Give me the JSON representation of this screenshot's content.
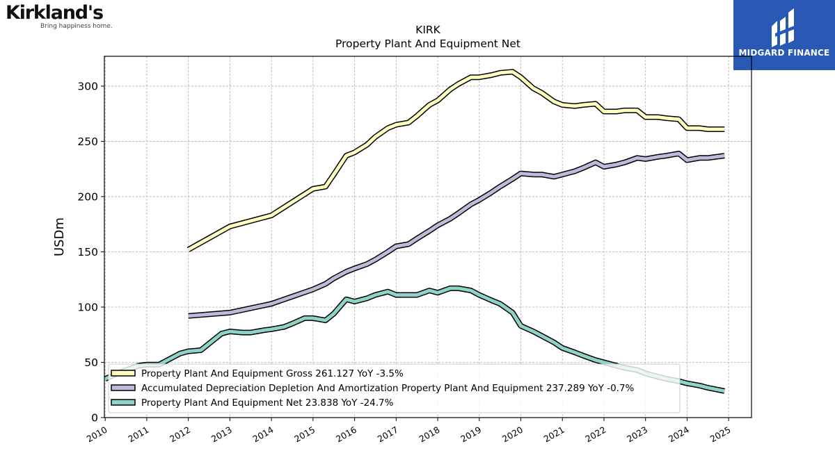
{
  "logos": {
    "company": {
      "name": "Kirkland's",
      "tagline": "Bring happiness home."
    },
    "publisher": {
      "name": "MIDGARD FINANCE"
    }
  },
  "colors": {
    "gross": "#ffffbf",
    "depreciation": "#bebada",
    "net": "#8dd3c7",
    "grid": "#b0b0b0",
    "publisher_bg": "#2a58b5"
  },
  "chart_data": {
    "type": "line",
    "title": "KIRK",
    "subtitle": "Property Plant And Equipment Net",
    "ylabel": "USDm",
    "xlabel": "",
    "xlim": [
      2009.98,
      2025.55
    ],
    "ylim": [
      0,
      327
    ],
    "yticks": [
      0,
      50,
      100,
      150,
      200,
      250,
      300
    ],
    "xticks": [
      "2010",
      "2011",
      "2012",
      "2013",
      "2014",
      "2015",
      "2016",
      "2017",
      "2018",
      "2019",
      "2020",
      "2021",
      "2022",
      "2023",
      "2024",
      "2025"
    ],
    "grid": true,
    "legend_position": "lower-left",
    "series": [
      {
        "key": "gross",
        "name": "Property Plant And Equipment Gross",
        "legend_label": "Property Plant And Equipment Gross  261.127 YoY -3.5%",
        "x": [
          2012.0,
          2013.0,
          2014.0,
          2015.0,
          2015.3,
          2015.5,
          2015.8,
          2016.0,
          2016.3,
          2016.5,
          2016.8,
          2017.0,
          2017.3,
          2017.5,
          2017.8,
          2018.0,
          2018.3,
          2018.5,
          2018.8,
          2019.0,
          2019.3,
          2019.5,
          2019.8,
          2020.0,
          2020.3,
          2020.5,
          2020.8,
          2021.0,
          2021.3,
          2021.5,
          2021.8,
          2022.0,
          2022.3,
          2022.5,
          2022.8,
          2023.0,
          2023.3,
          2023.5,
          2023.8,
          2024.0,
          2024.3,
          2024.5,
          2024.9
        ],
        "y": [
          152,
          173,
          183,
          207,
          209,
          220,
          237,
          240,
          247,
          254,
          262,
          265,
          267,
          273,
          283,
          287,
          297,
          302,
          308,
          308,
          310,
          312,
          313,
          308,
          298,
          294,
          286,
          283,
          282,
          283,
          284,
          277,
          277,
          278,
          278,
          272,
          272,
          271,
          270,
          262,
          262,
          261,
          261
        ]
      },
      {
        "key": "depreciation",
        "name": "Accumulated Depreciation Depletion And Amortization Property Plant And Equipment",
        "legend_label": "Accumulated Depreciation Depletion And Amortization Property Plant And Equipment  237.289 YoY -0.7%",
        "x": [
          2012.0,
          2013.0,
          2014.0,
          2015.0,
          2015.3,
          2015.5,
          2015.8,
          2016.0,
          2016.3,
          2016.5,
          2016.8,
          2017.0,
          2017.3,
          2017.5,
          2017.8,
          2018.0,
          2018.3,
          2018.5,
          2018.8,
          2019.0,
          2019.3,
          2019.5,
          2019.8,
          2020.0,
          2020.3,
          2020.5,
          2020.8,
          2021.0,
          2021.3,
          2021.5,
          2021.8,
          2022.0,
          2022.3,
          2022.5,
          2022.8,
          2023.0,
          2023.3,
          2023.5,
          2023.8,
          2024.0,
          2024.3,
          2024.5,
          2024.9
        ],
        "y": [
          92,
          95,
          103,
          116,
          121,
          126,
          132,
          135,
          139,
          143,
          150,
          155,
          157,
          162,
          169,
          174,
          180,
          185,
          193,
          197,
          204,
          209,
          216,
          221,
          220,
          220,
          218,
          220,
          223,
          226,
          231,
          227,
          229,
          231,
          235,
          234,
          236,
          237,
          239,
          233,
          235,
          235,
          237
        ]
      },
      {
        "key": "net",
        "name": "Property Plant And Equipment Net",
        "legend_label": "Property Plant And Equipment Net  23.838 YoY -24.7%",
        "x": [
          2010.0,
          2010.3,
          2010.5,
          2010.8,
          2011.0,
          2011.3,
          2011.5,
          2011.8,
          2012.0,
          2012.3,
          2012.5,
          2012.8,
          2013.0,
          2013.3,
          2013.5,
          2013.8,
          2014.0,
          2014.3,
          2014.5,
          2014.8,
          2015.0,
          2015.3,
          2015.5,
          2015.8,
          2016.0,
          2016.3,
          2016.5,
          2016.8,
          2017.0,
          2017.3,
          2017.5,
          2017.8,
          2018.0,
          2018.3,
          2018.5,
          2018.8,
          2019.0,
          2019.3,
          2019.5,
          2019.8,
          2020.0,
          2020.3,
          2020.5,
          2020.8,
          2021.0,
          2021.3,
          2021.5,
          2021.8,
          2022.0,
          2022.3,
          2022.5,
          2022.8,
          2023.0,
          2023.3,
          2023.5,
          2023.8,
          2024.0,
          2024.3,
          2024.5,
          2024.9
        ],
        "y": [
          35,
          40,
          43,
          47,
          48,
          48,
          52,
          58,
          60,
          61,
          67,
          76,
          78,
          77,
          77,
          79,
          80,
          82,
          85,
          90,
          90,
          88,
          94,
          107,
          105,
          108,
          111,
          114,
          111,
          111,
          111,
          115,
          113,
          117,
          117,
          115,
          111,
          106,
          103,
          95,
          83,
          78,
          74,
          68,
          63,
          59,
          56,
          52,
          50,
          47,
          45,
          43,
          40,
          37,
          35,
          33,
          31,
          29,
          27,
          24
        ]
      }
    ]
  }
}
